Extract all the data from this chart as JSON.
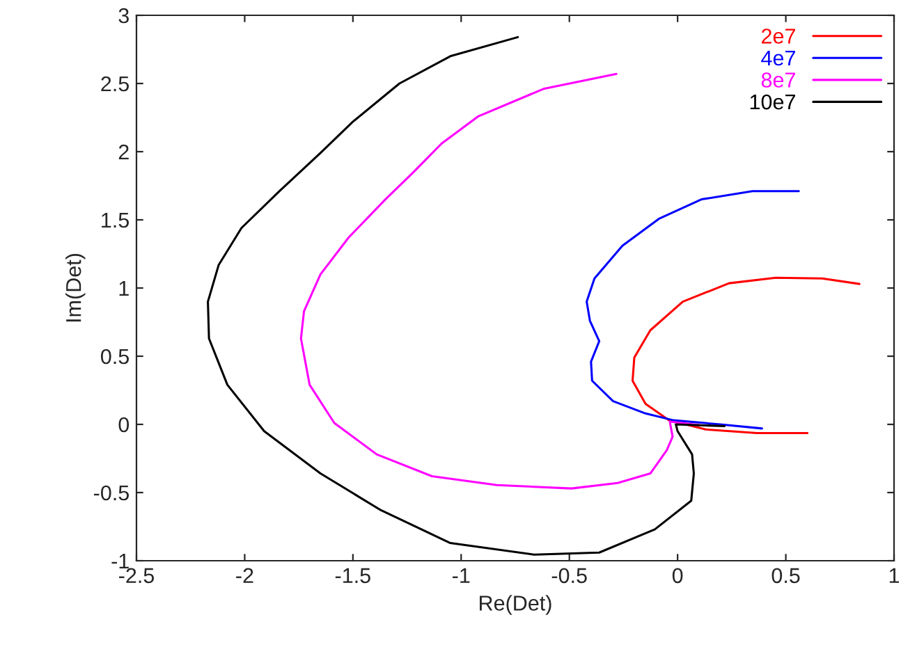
{
  "chart_data": {
    "type": "line",
    "xlabel": "Re(Det)",
    "ylabel": "Im(Det)",
    "xlim": [
      -2.5,
      1
    ],
    "xticks": [
      -2.5,
      -2,
      -1.5,
      -1,
      -0.5,
      0,
      0.5,
      1
    ],
    "ylim": [
      -1,
      3
    ],
    "yticks": [
      -1,
      -0.5,
      0,
      0.5,
      1,
      1.5,
      2,
      2.5,
      3
    ],
    "grid": false,
    "legend": "top right",
    "marker": "none",
    "line_style": "solid",
    "series": [
      {
        "name": "2e7",
        "color": "#ff0000",
        "x": [
          0.84,
          0.668,
          0.453,
          0.238,
          0.024,
          -0.126,
          -0.2,
          -0.208,
          -0.148,
          -0.04,
          0.13,
          0.367,
          0.6
        ],
        "values": [
          1.03,
          1.07,
          1.075,
          1.035,
          0.9,
          0.69,
          0.49,
          0.32,
          0.15,
          0.03,
          -0.037,
          -0.064,
          -0.064
        ]
      },
      {
        "name": "4e7",
        "color": "#0000ff",
        "x": [
          0.56,
          0.346,
          0.11,
          -0.084,
          -0.255,
          -0.384,
          -0.42,
          -0.405,
          -0.362,
          -0.4,
          -0.395,
          -0.298,
          -0.148,
          -0.019,
          0.196,
          0.39
        ],
        "values": [
          1.71,
          1.71,
          1.65,
          1.51,
          1.31,
          1.07,
          0.9,
          0.76,
          0.61,
          0.46,
          0.32,
          0.17,
          0.08,
          0.03,
          0.0,
          -0.03
        ]
      },
      {
        "name": "8e7",
        "color": "#ff00ff",
        "x": [
          -0.283,
          -0.62,
          -0.92,
          -1.09,
          -1.22,
          -1.35,
          -1.52,
          -1.65,
          -1.726,
          -1.74,
          -1.7,
          -1.586,
          -1.39,
          -1.135,
          -0.835,
          -0.49,
          -0.277,
          -0.126,
          -0.05,
          -0.023,
          -0.036,
          0.1
        ],
        "values": [
          2.57,
          2.46,
          2.26,
          2.06,
          1.85,
          1.65,
          1.37,
          1.1,
          0.83,
          0.63,
          0.29,
          0.01,
          -0.22,
          -0.38,
          -0.445,
          -0.47,
          -0.43,
          -0.36,
          -0.19,
          -0.09,
          0.02,
          -0.005
        ]
      },
      {
        "name": "10e7",
        "color": "#000000",
        "x": [
          -0.738,
          -1.05,
          -1.285,
          -1.5,
          -1.65,
          -1.84,
          -2.015,
          -2.12,
          -2.17,
          -2.165,
          -2.08,
          -1.91,
          -1.65,
          -1.37,
          -1.05,
          -0.663,
          -0.362,
          -0.105,
          0.063,
          0.075,
          0.067,
          0.0,
          -0.008,
          0.217
        ],
        "values": [
          2.84,
          2.7,
          2.5,
          2.22,
          1.99,
          1.71,
          1.44,
          1.17,
          0.9,
          0.63,
          0.29,
          -0.05,
          -0.36,
          -0.63,
          -0.87,
          -0.955,
          -0.94,
          -0.77,
          -0.56,
          -0.36,
          -0.22,
          -0.05,
          0.0,
          -0.013
        ]
      }
    ]
  }
}
